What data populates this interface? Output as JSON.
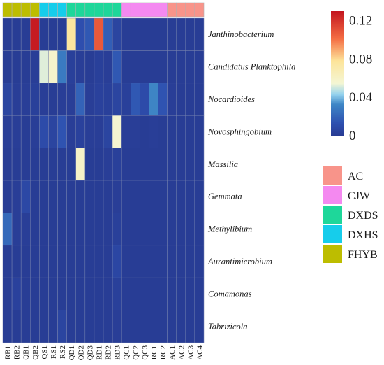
{
  "chart_data": {
    "type": "heatmap",
    "title": "",
    "xlabel": "",
    "ylabel": "",
    "columns": [
      "RB1",
      "RB2",
      "QB1",
      "QB2",
      "QS1",
      "RS1",
      "RS2",
      "QD1",
      "QD2",
      "QD3",
      "RD1",
      "RD2",
      "RD3",
      "QC1",
      "QC2",
      "QC3",
      "RC1",
      "RC2",
      "AC1",
      "AC2",
      "AC3",
      "AC4"
    ],
    "column_groups": [
      "FHYB",
      "FHYB",
      "FHYB",
      "FHYB",
      "DXHS",
      "DXHS",
      "DXHS",
      "DXDS",
      "DXDS",
      "DXDS",
      "DXDS",
      "DXDS",
      "DXDS",
      "CJW",
      "CJW",
      "CJW",
      "CJW",
      "CJW",
      "AC",
      "AC",
      "AC",
      "AC"
    ],
    "rows": [
      "Janthinobacterium",
      "Candidatus Planktophila",
      "Nocardioides",
      "Novosphingobium",
      "Massilia",
      "Gemmata",
      "Methylibium",
      "Aurantimicrobium",
      "Comamonas",
      "Tabrizicola"
    ],
    "values": [
      [
        0.001,
        0.001,
        0.001,
        0.128,
        0.001,
        0.001,
        0.001,
        0.076,
        0.012,
        0.016,
        0.108,
        0.018,
        0.006,
        0.001,
        0.001,
        0.001,
        0.001,
        0.001,
        0.001,
        0.001,
        0.001,
        0.001
      ],
      [
        0.001,
        0.001,
        0.001,
        0.002,
        0.052,
        0.058,
        0.028,
        0.003,
        0.002,
        0.001,
        0.003,
        0.002,
        0.016,
        0.001,
        0.001,
        0.001,
        0.001,
        0.001,
        0.001,
        0.001,
        0.001,
        0.001
      ],
      [
        0.006,
        0.002,
        0.002,
        0.003,
        0.002,
        0.001,
        0.002,
        0.002,
        0.02,
        0.002,
        0.004,
        0.003,
        0.006,
        0.003,
        0.016,
        0.01,
        0.032,
        0.014,
        0.002,
        0.001,
        0.001,
        0.001
      ],
      [
        0.002,
        0.002,
        0.001,
        0.002,
        0.01,
        0.006,
        0.014,
        0.002,
        0.004,
        0.002,
        0.002,
        0.006,
        0.056,
        0.002,
        0.002,
        0.001,
        0.002,
        0.001,
        0.001,
        0.001,
        0.001,
        0.001
      ],
      [
        0.001,
        0.001,
        0.001,
        0.001,
        0.001,
        0.001,
        0.001,
        0.001,
        0.06,
        0.001,
        0.001,
        0.002,
        0.003,
        0.001,
        0.001,
        0.001,
        0.001,
        0.001,
        0.001,
        0.001,
        0.001,
        0.001
      ],
      [
        0.001,
        0.002,
        0.008,
        0.001,
        0.001,
        0.001,
        0.001,
        0.001,
        0.001,
        0.001,
        0.001,
        0.001,
        0.002,
        0.001,
        0.001,
        0.001,
        0.001,
        0.001,
        0.001,
        0.001,
        0.001,
        0.001
      ],
      [
        0.022,
        0.002,
        0.002,
        0.001,
        0.001,
        0.001,
        0.001,
        0.001,
        0.001,
        0.001,
        0.001,
        0.001,
        0.003,
        0.001,
        0.001,
        0.001,
        0.001,
        0.001,
        0.001,
        0.001,
        0.001,
        0.001
      ],
      [
        0.001,
        0.001,
        0.001,
        0.001,
        0.001,
        0.001,
        0.001,
        0.001,
        0.001,
        0.001,
        0.001,
        0.001,
        0.007,
        0.001,
        0.001,
        0.001,
        0.001,
        0.001,
        0.001,
        0.001,
        0.001,
        0.001
      ],
      [
        0.001,
        0.004,
        0.001,
        0.001,
        0.001,
        0.001,
        0.001,
        0.001,
        0.001,
        0.001,
        0.001,
        0.001,
        0.003,
        0.001,
        0.001,
        0.001,
        0.001,
        0.001,
        0.001,
        0.001,
        0.001,
        0.001
      ],
      [
        0.001,
        0.001,
        0.001,
        0.001,
        0.001,
        0.001,
        0.006,
        0.001,
        0.001,
        0.001,
        0.001,
        0.001,
        0.002,
        0.001,
        0.001,
        0.001,
        0.001,
        0.001,
        0.001,
        0.001,
        0.001,
        0.001
      ]
    ],
    "colorbar": {
      "min": 0,
      "max": 0.13,
      "ticks": [
        0,
        0.04,
        0.08,
        0.12
      ],
      "tick_labels": [
        "0",
        "0.04",
        "0.08",
        "0.12"
      ]
    },
    "legend": {
      "position": "right",
      "entries": [
        {
          "label": "AC",
          "color": "#F8948A"
        },
        {
          "label": "CJW",
          "color": "#F489F0"
        },
        {
          "label": "DXDS",
          "color": "#1ED79A"
        },
        {
          "label": "DXHS",
          "color": "#16CDEB"
        },
        {
          "label": "FHYB",
          "color": "#BDBD00"
        }
      ]
    },
    "grid": true
  }
}
